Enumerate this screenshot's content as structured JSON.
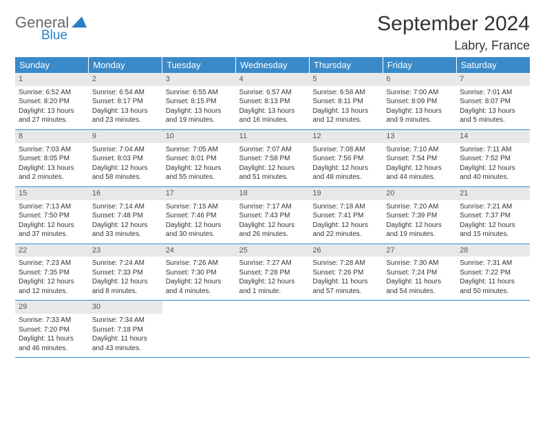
{
  "logo": {
    "word1": "General",
    "word2": "Blue"
  },
  "title": "September 2024",
  "location": "Labry, France",
  "colors": {
    "header_bg": "#3a8ac9",
    "header_text": "#ffffff",
    "daynum_bg": "#e8e8e8",
    "daynum_text": "#555555",
    "body_text": "#333333",
    "rule": "#3a8ac9",
    "logo_gray": "#666666",
    "logo_blue": "#2a7fc9"
  },
  "weekdays": [
    "Sunday",
    "Monday",
    "Tuesday",
    "Wednesday",
    "Thursday",
    "Friday",
    "Saturday"
  ],
  "weeks": [
    [
      {
        "n": "1",
        "sr": "6:52 AM",
        "ss": "8:20 PM",
        "dl": "13 hours and 27 minutes."
      },
      {
        "n": "2",
        "sr": "6:54 AM",
        "ss": "8:17 PM",
        "dl": "13 hours and 23 minutes."
      },
      {
        "n": "3",
        "sr": "6:55 AM",
        "ss": "8:15 PM",
        "dl": "13 hours and 19 minutes."
      },
      {
        "n": "4",
        "sr": "6:57 AM",
        "ss": "8:13 PM",
        "dl": "13 hours and 16 minutes."
      },
      {
        "n": "5",
        "sr": "6:58 AM",
        "ss": "8:11 PM",
        "dl": "13 hours and 12 minutes."
      },
      {
        "n": "6",
        "sr": "7:00 AM",
        "ss": "8:09 PM",
        "dl": "13 hours and 9 minutes."
      },
      {
        "n": "7",
        "sr": "7:01 AM",
        "ss": "8:07 PM",
        "dl": "13 hours and 5 minutes."
      }
    ],
    [
      {
        "n": "8",
        "sr": "7:03 AM",
        "ss": "8:05 PM",
        "dl": "13 hours and 2 minutes."
      },
      {
        "n": "9",
        "sr": "7:04 AM",
        "ss": "8:03 PM",
        "dl": "12 hours and 58 minutes."
      },
      {
        "n": "10",
        "sr": "7:05 AM",
        "ss": "8:01 PM",
        "dl": "12 hours and 55 minutes."
      },
      {
        "n": "11",
        "sr": "7:07 AM",
        "ss": "7:58 PM",
        "dl": "12 hours and 51 minutes."
      },
      {
        "n": "12",
        "sr": "7:08 AM",
        "ss": "7:56 PM",
        "dl": "12 hours and 48 minutes."
      },
      {
        "n": "13",
        "sr": "7:10 AM",
        "ss": "7:54 PM",
        "dl": "12 hours and 44 minutes."
      },
      {
        "n": "14",
        "sr": "7:11 AM",
        "ss": "7:52 PM",
        "dl": "12 hours and 40 minutes."
      }
    ],
    [
      {
        "n": "15",
        "sr": "7:13 AM",
        "ss": "7:50 PM",
        "dl": "12 hours and 37 minutes."
      },
      {
        "n": "16",
        "sr": "7:14 AM",
        "ss": "7:48 PM",
        "dl": "12 hours and 33 minutes."
      },
      {
        "n": "17",
        "sr": "7:15 AM",
        "ss": "7:46 PM",
        "dl": "12 hours and 30 minutes."
      },
      {
        "n": "18",
        "sr": "7:17 AM",
        "ss": "7:43 PM",
        "dl": "12 hours and 26 minutes."
      },
      {
        "n": "19",
        "sr": "7:18 AM",
        "ss": "7:41 PM",
        "dl": "12 hours and 22 minutes."
      },
      {
        "n": "20",
        "sr": "7:20 AM",
        "ss": "7:39 PM",
        "dl": "12 hours and 19 minutes."
      },
      {
        "n": "21",
        "sr": "7:21 AM",
        "ss": "7:37 PM",
        "dl": "12 hours and 15 minutes."
      }
    ],
    [
      {
        "n": "22",
        "sr": "7:23 AM",
        "ss": "7:35 PM",
        "dl": "12 hours and 12 minutes."
      },
      {
        "n": "23",
        "sr": "7:24 AM",
        "ss": "7:33 PM",
        "dl": "12 hours and 8 minutes."
      },
      {
        "n": "24",
        "sr": "7:26 AM",
        "ss": "7:30 PM",
        "dl": "12 hours and 4 minutes."
      },
      {
        "n": "25",
        "sr": "7:27 AM",
        "ss": "7:28 PM",
        "dl": "12 hours and 1 minute."
      },
      {
        "n": "26",
        "sr": "7:28 AM",
        "ss": "7:26 PM",
        "dl": "11 hours and 57 minutes."
      },
      {
        "n": "27",
        "sr": "7:30 AM",
        "ss": "7:24 PM",
        "dl": "11 hours and 54 minutes."
      },
      {
        "n": "28",
        "sr": "7:31 AM",
        "ss": "7:22 PM",
        "dl": "11 hours and 50 minutes."
      }
    ],
    [
      {
        "n": "29",
        "sr": "7:33 AM",
        "ss": "7:20 PM",
        "dl": "11 hours and 46 minutes."
      },
      {
        "n": "30",
        "sr": "7:34 AM",
        "ss": "7:18 PM",
        "dl": "11 hours and 43 minutes."
      },
      null,
      null,
      null,
      null,
      null
    ]
  ],
  "labels": {
    "sunrise": "Sunrise:",
    "sunset": "Sunset:",
    "daylight": "Daylight:"
  }
}
